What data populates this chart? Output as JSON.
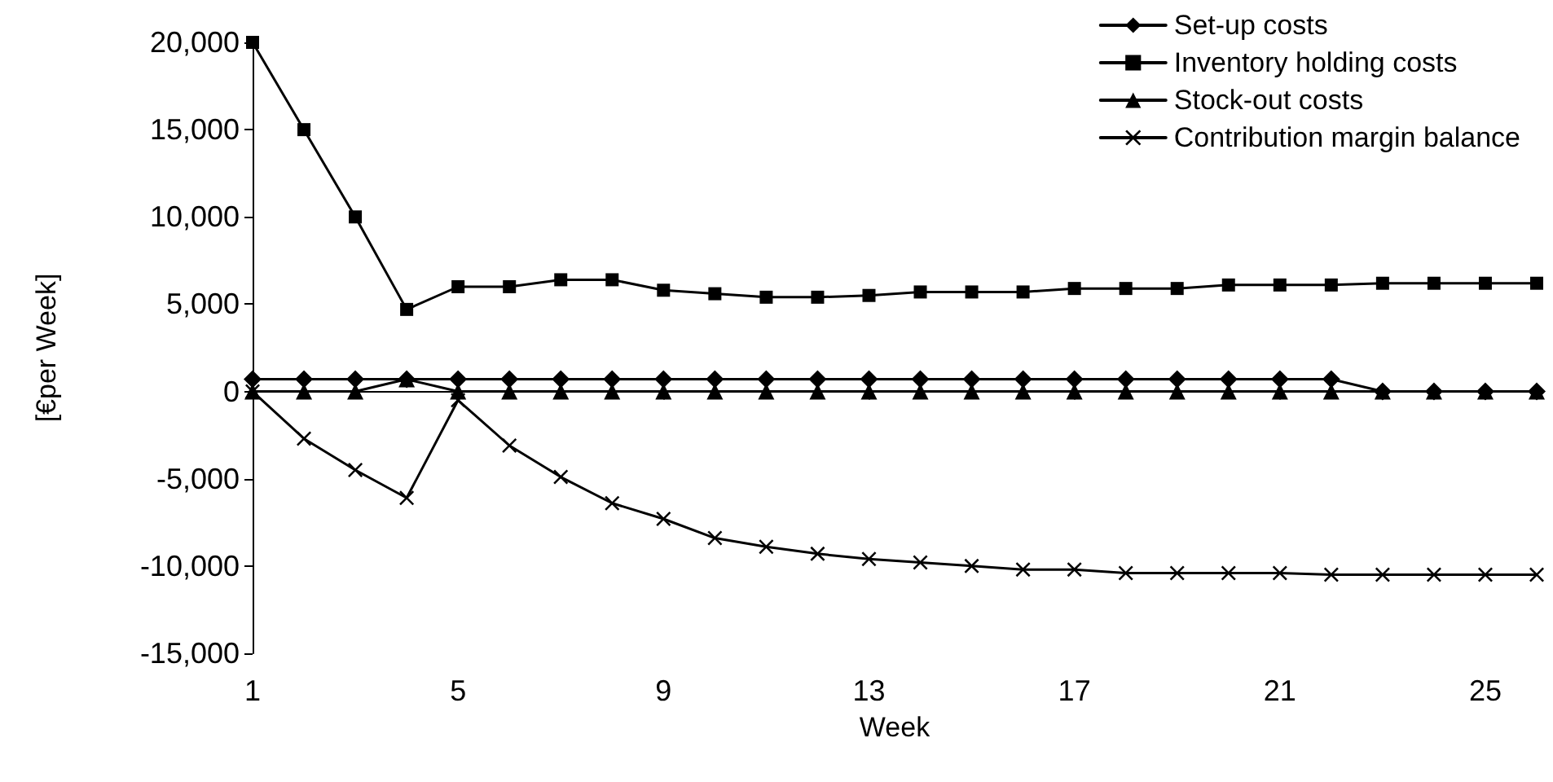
{
  "chart_data": {
    "type": "line",
    "xlabel": "Week",
    "ylabel": "[€per Week]",
    "categories": [
      "1",
      null,
      null,
      null,
      "5",
      null,
      null,
      null,
      "9",
      null,
      null,
      null,
      "13",
      null,
      null,
      null,
      "17",
      null,
      null,
      null,
      "21",
      null,
      null,
      null,
      "25",
      null
    ],
    "series": [
      {
        "name": "Set-up costs",
        "color": "#000000",
        "marker": "diamond",
        "values": [
          700,
          700,
          700,
          700,
          700,
          700,
          700,
          700,
          700,
          700,
          700,
          700,
          700,
          700,
          700,
          700,
          700,
          700,
          700,
          700,
          700,
          700,
          0,
          0,
          0,
          0
        ]
      },
      {
        "name": "Inventory holding costs",
        "color": "#000000",
        "marker": "square",
        "values": [
          20000,
          15000,
          10000,
          4700,
          6000,
          6000,
          6400,
          6400,
          5800,
          5600,
          5400,
          5400,
          5500,
          5700,
          5700,
          5700,
          5900,
          5900,
          5900,
          6100,
          6100,
          6100,
          6200,
          6200,
          6200,
          6200
        ]
      },
      {
        "name": "Stock-out costs",
        "color": "#000000",
        "marker": "triangle",
        "values": [
          0,
          0,
          0,
          700,
          0,
          0,
          0,
          0,
          0,
          0,
          0,
          0,
          0,
          0,
          0,
          0,
          0,
          0,
          0,
          0,
          0,
          0,
          0,
          0,
          0,
          0
        ]
      },
      {
        "name": "Contribution margin balance",
        "color": "#000000",
        "marker": "cross",
        "values": [
          0,
          -2700,
          -4500,
          -6100,
          -500,
          -3100,
          -4900,
          -6400,
          -7300,
          -8400,
          -8900,
          -9300,
          -9600,
          -9800,
          -10000,
          -10200,
          -10200,
          -10400,
          -10400,
          -10400,
          -10400,
          -10500,
          -10500,
          -10500,
          -10500,
          -10500
        ]
      }
    ],
    "ylim": [
      -15000,
      20000
    ],
    "yticks": [
      {
        "value": -15000,
        "label": "-15,000"
      },
      {
        "value": -10000,
        "label": "-10,000"
      },
      {
        "value": -5000,
        "label": "-5,000"
      },
      0,
      {
        "value": 5000,
        "label": "5,000"
      },
      {
        "value": 10000,
        "label": "10,000"
      },
      {
        "value": 15000,
        "label": "15,000"
      },
      {
        "value": 20000,
        "label": "20,000"
      }
    ],
    "legend": "top right",
    "line_style": "solid"
  }
}
